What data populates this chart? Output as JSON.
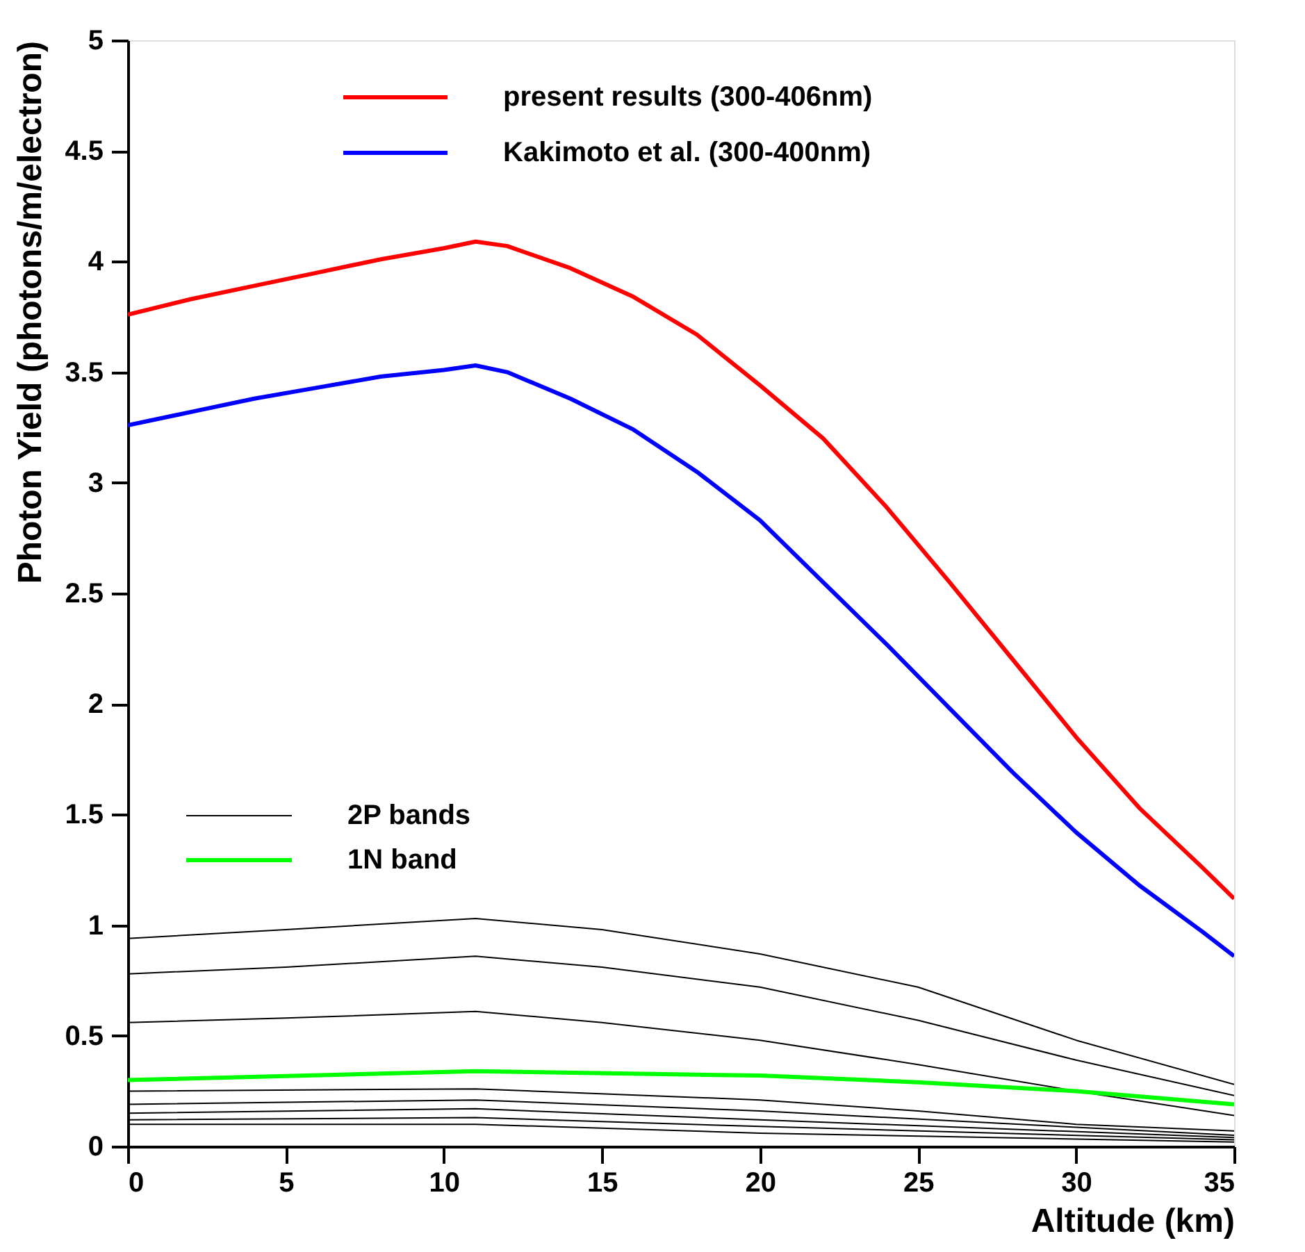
{
  "chart_data": {
    "type": "line",
    "xlabel": "Altitude (km)",
    "ylabel": "Photon Yield (photons/m/electron)",
    "xlim": [
      0,
      35
    ],
    "ylim": [
      0,
      5
    ],
    "xticks": [
      0,
      5,
      10,
      15,
      20,
      25,
      30,
      35
    ],
    "yticks": [
      0,
      0.5,
      1,
      1.5,
      2,
      2.5,
      3,
      3.5,
      4,
      4.5,
      5
    ],
    "grid": false,
    "legend": "top",
    "line_style": "solid",
    "marker": "none",
    "series": [
      {
        "name": "present results (300-406nm)",
        "color": "#ff0000",
        "x": [
          0,
          2,
          4,
          6,
          8,
          10,
          11,
          12,
          14,
          16,
          18,
          20,
          22,
          24,
          26,
          28,
          30,
          32,
          34,
          35
        ],
        "values": [
          3.76,
          3.83,
          3.89,
          3.95,
          4.01,
          4.06,
          4.09,
          4.07,
          3.97,
          3.84,
          3.67,
          3.44,
          3.2,
          2.89,
          2.55,
          2.2,
          1.85,
          1.53,
          1.26,
          1.12
        ]
      },
      {
        "name": "Kakimoto et al. (300-400nm)",
        "color": "#0000ff",
        "x": [
          0,
          2,
          4,
          6,
          8,
          10,
          11,
          12,
          14,
          16,
          18,
          20,
          22,
          24,
          26,
          28,
          30,
          32,
          34,
          35
        ],
        "values": [
          3.26,
          3.32,
          3.38,
          3.43,
          3.48,
          3.51,
          3.53,
          3.5,
          3.38,
          3.24,
          3.05,
          2.83,
          2.55,
          2.27,
          1.98,
          1.69,
          1.42,
          1.18,
          0.97,
          0.86
        ]
      },
      {
        "name": "2P bands",
        "color": "#000000",
        "x": [
          0,
          5,
          11,
          15,
          20,
          25,
          30,
          35
        ],
        "values": [
          0.94,
          0.98,
          1.03,
          0.98,
          0.87,
          0.72,
          0.48,
          0.28
        ]
      },
      {
        "color": "#000000",
        "x": [
          0,
          5,
          11,
          15,
          20,
          25,
          30,
          35
        ],
        "values": [
          0.78,
          0.81,
          0.86,
          0.81,
          0.72,
          0.57,
          0.39,
          0.23
        ]
      },
      {
        "color": "#000000",
        "x": [
          0,
          5,
          11,
          15,
          20,
          25,
          30,
          35
        ],
        "values": [
          0.56,
          0.58,
          0.61,
          0.56,
          0.48,
          0.37,
          0.25,
          0.14
        ]
      },
      {
        "color": "#000000",
        "x": [
          0,
          11,
          20,
          25,
          30,
          35
        ],
        "values": [
          0.25,
          0.26,
          0.21,
          0.16,
          0.1,
          0.07
        ]
      },
      {
        "color": "#000000",
        "x": [
          0,
          11,
          20,
          35
        ],
        "values": [
          0.19,
          0.21,
          0.16,
          0.05
        ]
      },
      {
        "color": "#000000",
        "x": [
          0,
          11,
          20,
          35
        ],
        "values": [
          0.15,
          0.17,
          0.12,
          0.04
        ]
      },
      {
        "color": "#000000",
        "x": [
          0,
          11,
          20,
          35
        ],
        "values": [
          0.12,
          0.13,
          0.09,
          0.03
        ]
      },
      {
        "color": "#000000",
        "x": [
          0,
          11,
          20,
          35
        ],
        "values": [
          0.1,
          0.1,
          0.06,
          0.02
        ]
      },
      {
        "name": "1N band",
        "color": "#00ff00",
        "x": [
          0,
          11,
          20,
          25,
          30,
          35
        ],
        "values": [
          0.3,
          0.34,
          0.32,
          0.29,
          0.25,
          0.19
        ]
      }
    ]
  }
}
